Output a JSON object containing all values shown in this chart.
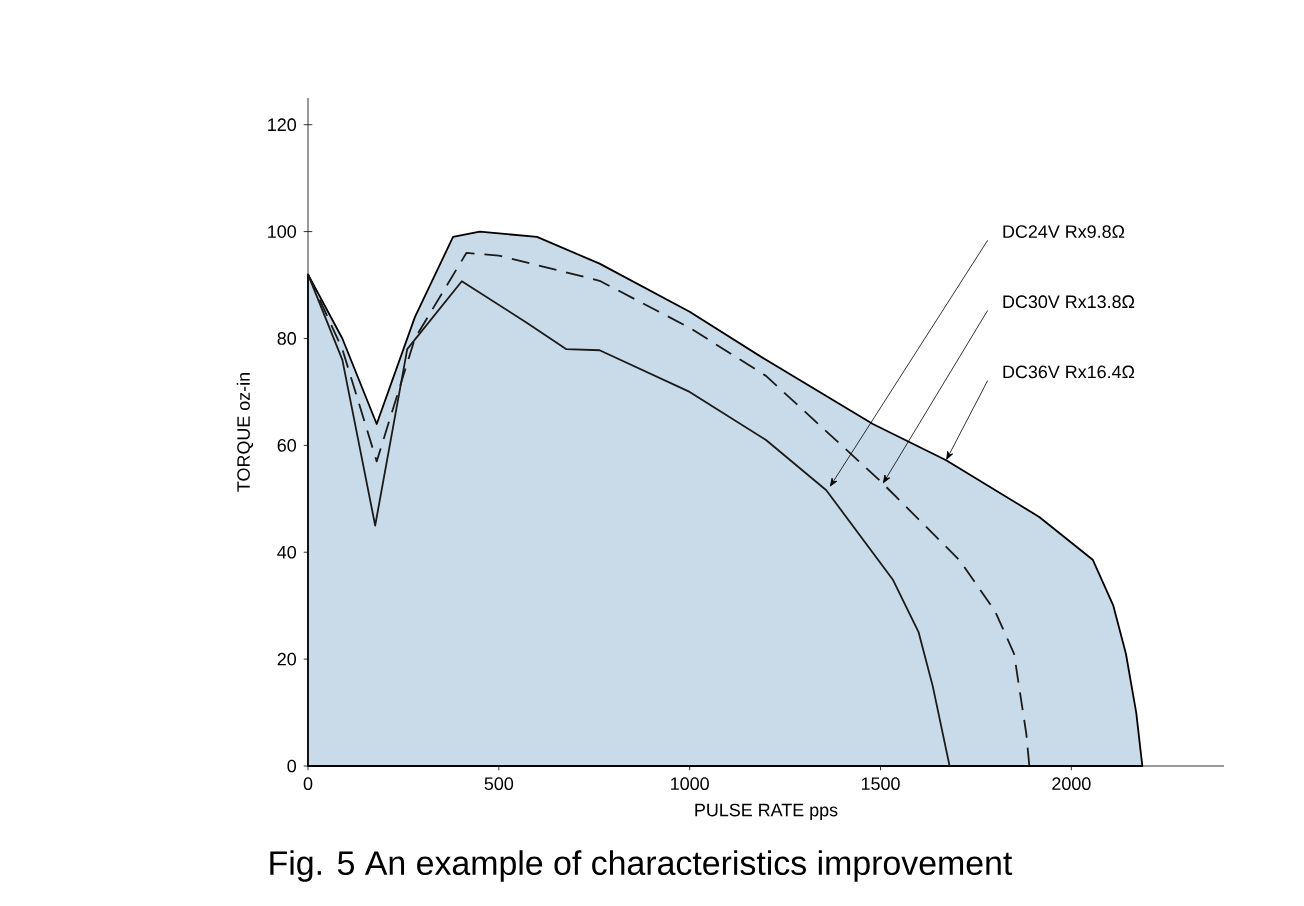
{
  "chart_data": {
    "type": "line",
    "title": "Fig. 5 An example of characteristics improvement",
    "xlabel": "PULSE RATE pps",
    "ylabel": "TORQUE oz-in",
    "xlim": [
      0,
      2400
    ],
    "ylim": [
      0,
      125
    ],
    "xticks": [
      0,
      500,
      1000,
      1500,
      2000
    ],
    "yticks": [
      0,
      20,
      40,
      60,
      80,
      100,
      120
    ],
    "series": [
      {
        "type": "area",
        "color": "#c9dbe8",
        "x": [
          0,
          90,
          180,
          280,
          380,
          450,
          600,
          764,
          1000,
          1200,
          1480,
          1672,
          1916,
          2056,
          2110,
          2143,
          2170,
          2186
        ],
        "values": [
          92,
          80,
          64,
          84,
          99,
          100,
          99,
          94,
          85,
          76,
          64,
          57.2,
          46.6,
          38.6,
          30,
          21,
          10,
          0
        ]
      },
      {
        "line_style": "dashed",
        "color": "#1a1a1a",
        "x": [
          0,
          90,
          180,
          280,
          415,
          500,
          764,
          1000,
          1200,
          1497,
          1707,
          1800,
          1850,
          1882,
          1890
        ],
        "values": [
          92,
          78,
          57,
          80,
          96,
          95.5,
          90.8,
          82,
          73,
          53.5,
          38.5,
          29,
          21,
          6,
          0
        ]
      },
      {
        "line_style": "solid",
        "color": "#1a1a1a",
        "x": [
          0,
          90,
          176,
          260,
          403,
          572,
          677,
          764,
          1000,
          1200,
          1358,
          1533,
          1600,
          1637,
          1681
        ],
        "values": [
          92,
          76,
          45,
          78,
          90.7,
          83,
          78,
          77.8,
          70,
          61,
          51.6,
          34.8,
          25,
          14.9,
          0
        ]
      }
    ],
    "annotations": [
      {
        "text": "DC24V Rx9.8Ω",
        "x": 1367,
        "y": 52.2
      },
      {
        "text": "DC30V Rx13.8Ω",
        "x": 1506,
        "y": 52.8
      },
      {
        "text": "DC36V Rx16.4Ω",
        "x": 1672,
        "y": 57.2
      }
    ]
  }
}
